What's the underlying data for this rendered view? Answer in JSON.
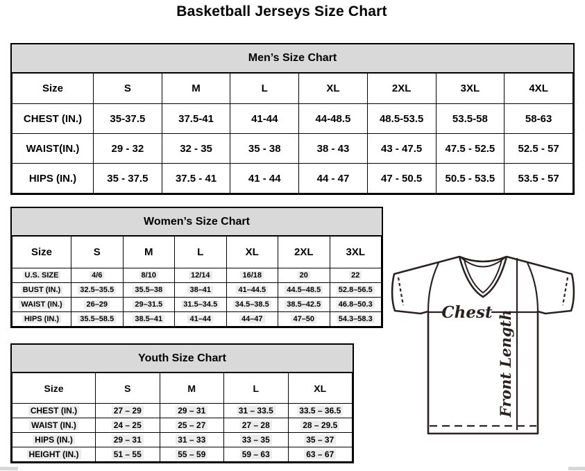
{
  "page_title": "Basketball Jerseys Size Chart",
  "tables": {
    "men": {
      "title": "Men’s Size Chart",
      "columns": [
        "Size",
        "S",
        "M",
        "L",
        "XL",
        "2XL",
        "3XL",
        "4XL"
      ],
      "rows": [
        {
          "label": "CHEST (IN.)",
          "values": [
            "35-37.5",
            "37.5-41",
            "41-44",
            "44-48.5",
            "48.5-53.5",
            "53.5-58",
            "58-63"
          ]
        },
        {
          "label": "WAIST(IN.)",
          "values": [
            "29 - 32",
            "32 - 35",
            "35 - 38",
            "38 - 43",
            "43 - 47.5",
            "47.5 - 52.5",
            "52.5 - 57"
          ]
        },
        {
          "label": "HIPS (IN.)",
          "values": [
            "35 - 37.5",
            "37.5 - 41",
            "41 - 44",
            "44 - 47",
            "47 - 50.5",
            "50.5 - 53.5",
            "53.5 - 57"
          ]
        }
      ]
    },
    "women": {
      "title": "Women’s Size Chart",
      "columns": [
        "Size",
        "S",
        "M",
        "L",
        "XL",
        "2XL",
        "3XL"
      ],
      "rows": [
        {
          "label": "U.S. SIZE",
          "values": [
            "4/6",
            "8/10",
            "12/14",
            "16/18",
            "20",
            "22"
          ]
        },
        {
          "label": "BUST (IN.)",
          "values": [
            "32.5–35.5",
            "35.5–38",
            "38–41",
            "41–44.5",
            "44.5–48.5",
            "52.8–56.5"
          ]
        },
        {
          "label": "WAIST (IN.)",
          "values": [
            "26–29",
            "29–31.5",
            "31.5–34.5",
            "34.5–38.5",
            "38.5–42.5",
            "46.8–50.3"
          ]
        },
        {
          "label": "HIPS (IN.)",
          "values": [
            "35.5–58.5",
            "38.5–41",
            "41–44",
            "44–47",
            "47–50",
            "54.3–58.3"
          ]
        }
      ]
    },
    "youth": {
      "title": "Youth Size Chart",
      "columns": [
        "Size",
        "S",
        "M",
        "L",
        "XL"
      ],
      "rows": [
        {
          "label": "CHEST (IN.)",
          "values": [
            "27 – 29",
            "29 – 31",
            "31 – 33.5",
            "33.5 – 36.5"
          ]
        },
        {
          "label": "WAIST (IN.)",
          "values": [
            "24 – 25",
            "25 – 27",
            "27 – 28",
            "28 – 29.5"
          ]
        },
        {
          "label": "HIPS (IN.)",
          "values": [
            "29 – 31",
            "31 – 33",
            "33 – 35",
            "35 – 37"
          ]
        },
        {
          "label": "HEIGHT (IN.)",
          "values": [
            "51 – 55",
            "55 – 59",
            "59 – 63",
            "63 – 67"
          ]
        }
      ]
    }
  },
  "diagram": {
    "chest_label": "Chest",
    "front_length_label": "Front Length"
  },
  "colors": {
    "header_band_bg": "#d9d9d9",
    "table_border": "#000000",
    "text": "#000000",
    "diagram_stroke": "#2a2220",
    "value_highlight": "#ececec",
    "scrollbar_thumb": "#d6d6d6"
  }
}
